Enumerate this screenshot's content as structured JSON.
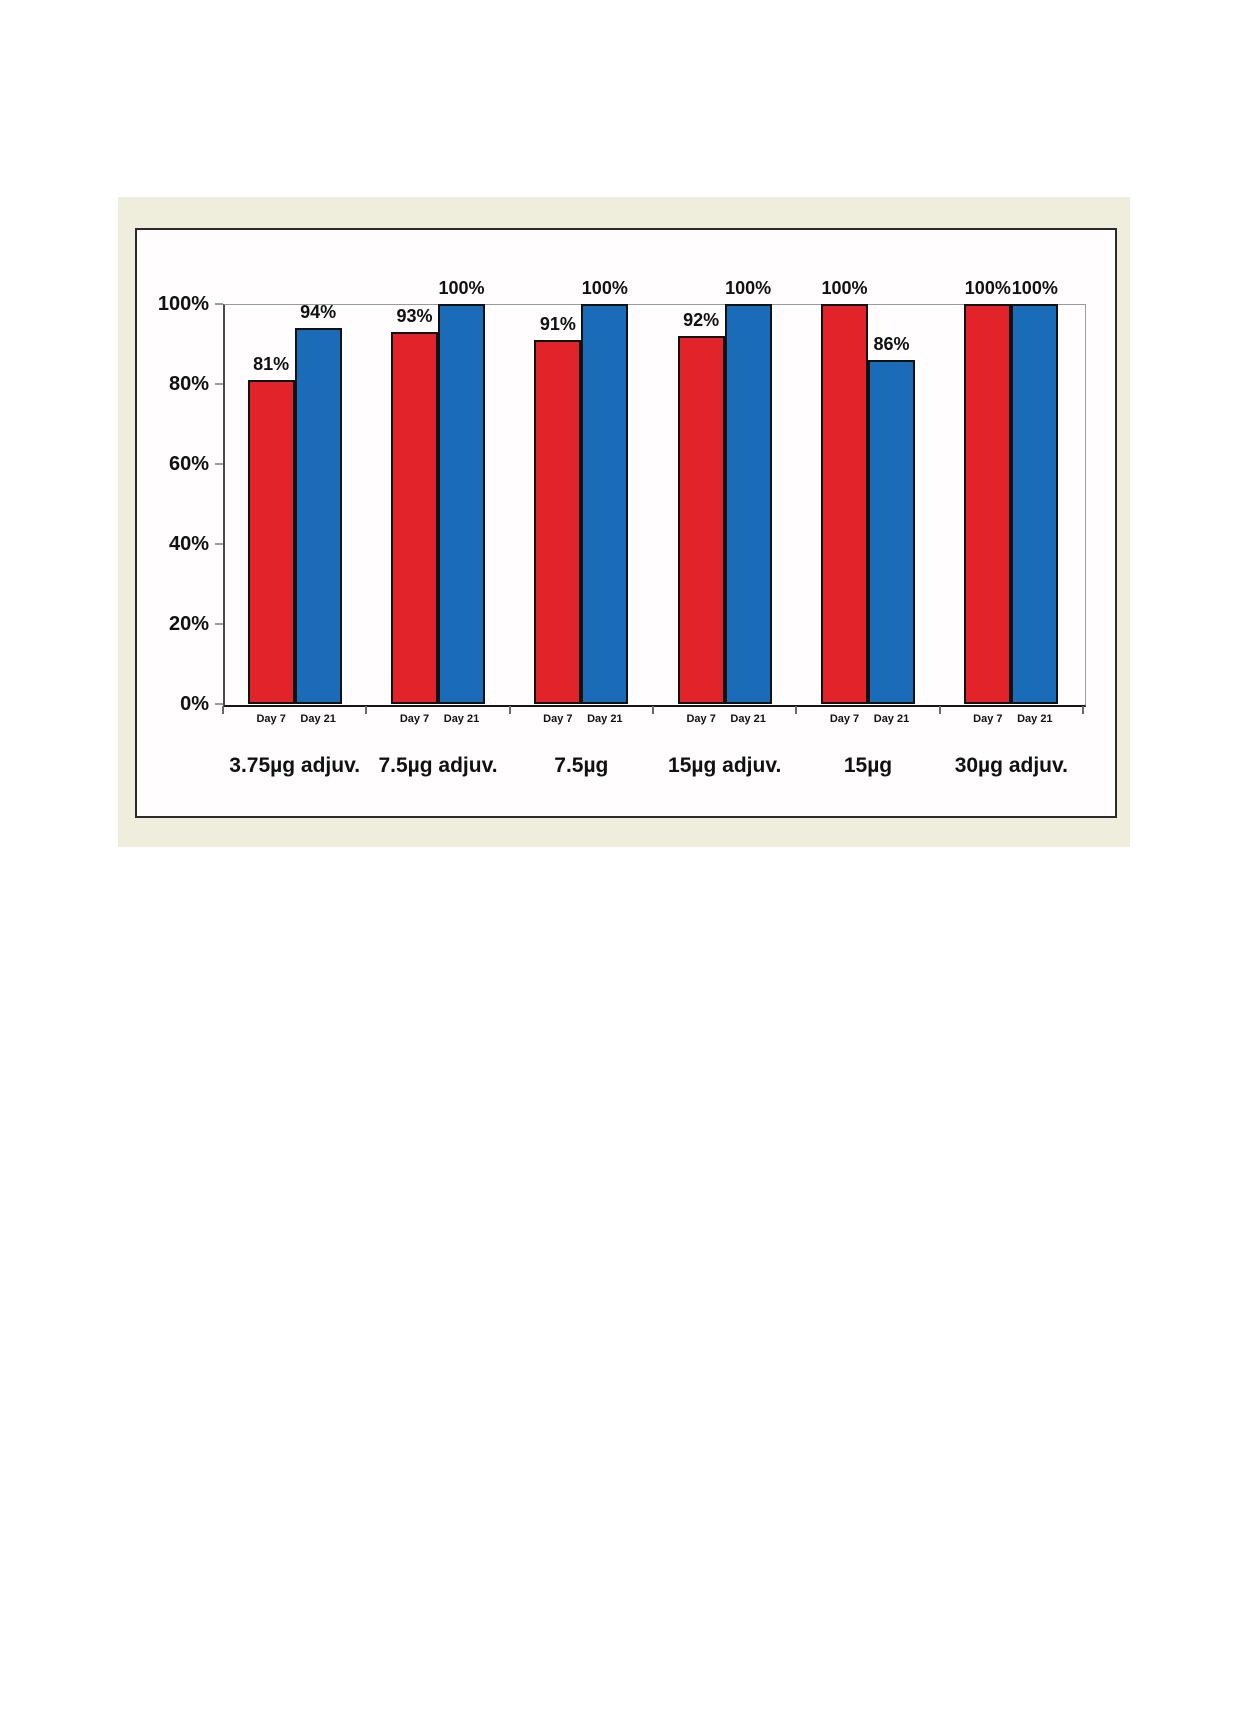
{
  "panel": {
    "background_color": "#efeddc"
  },
  "chart_data": {
    "type": "bar",
    "categories": [
      "3.75µg adjuv.",
      "7.5µg adjuv.",
      "7.5µg",
      "15µg adjuv.",
      "15µg",
      "30µg adjuv."
    ],
    "series": [
      {
        "name": "Day 7",
        "color": "#e2232a",
        "values": [
          81,
          93,
          91,
          92,
          100,
          100
        ],
        "value_labels": [
          "81%",
          "93%",
          "91%",
          "92%",
          "100%",
          "100%"
        ]
      },
      {
        "name": "Day 21",
        "color": "#1a6bb8",
        "values": [
          94,
          100,
          100,
          100,
          86,
          100
        ],
        "value_labels": [
          "94%",
          "100%",
          "100%",
          "100%",
          "86%",
          "100%"
        ]
      }
    ],
    "bar_x_labels": [
      "Day 7",
      "Day 21"
    ],
    "y_ticks": [
      {
        "value": 0,
        "label": "0%"
      },
      {
        "value": 20,
        "label": "20%"
      },
      {
        "value": 40,
        "label": "40%"
      },
      {
        "value": 60,
        "label": "60%"
      },
      {
        "value": 80,
        "label": "80%"
      },
      {
        "value": 100,
        "label": "100%"
      }
    ],
    "ylim": [
      0,
      100
    ],
    "title": "",
    "xlabel": "",
    "ylabel": "",
    "grid": false,
    "legend_position": "none",
    "bar_outline_color": "#111111"
  }
}
